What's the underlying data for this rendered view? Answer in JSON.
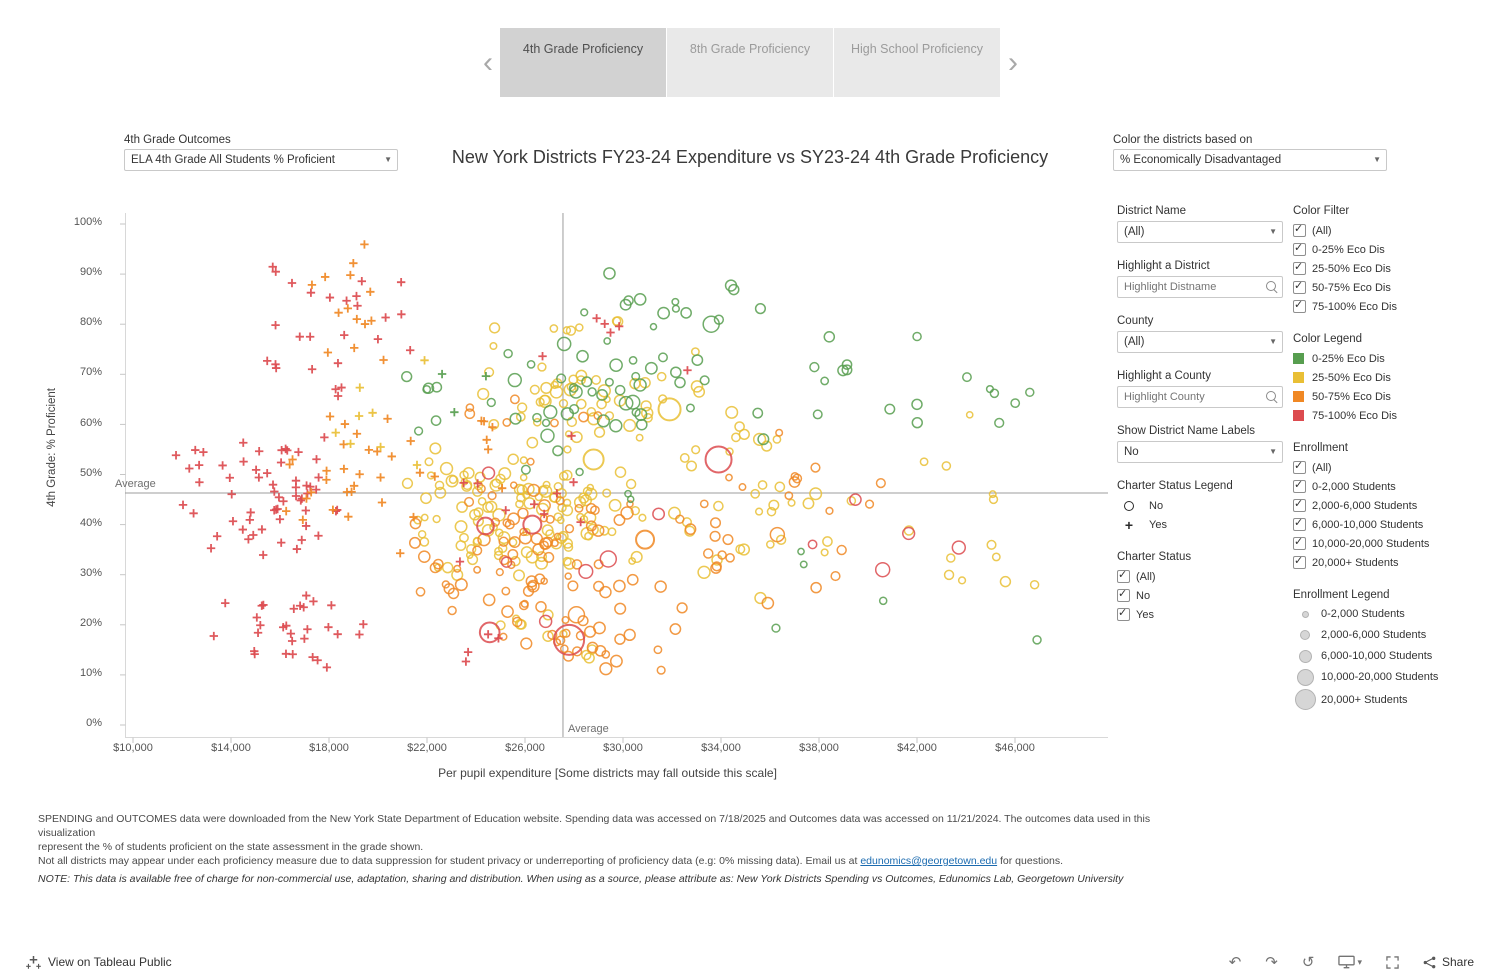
{
  "tabs": {
    "prev": "‹",
    "next": "›",
    "items": [
      {
        "label": "4th Grade Proficiency",
        "active": true
      },
      {
        "label": "8th Grade Proficiency",
        "active": false
      },
      {
        "label": "High School Proficiency",
        "active": false
      }
    ]
  },
  "params": {
    "outcome": {
      "label": "4th Grade Outcomes",
      "value": "ELA 4th Grade All Students % Proficient"
    },
    "color_by": {
      "label": "Color the districts based on",
      "value": "% Economically Disadvantaged"
    }
  },
  "chart_data": {
    "type": "scatter",
    "title": "New York Districts FY23-24 Expenditure vs SY23-24 4th Grade Proficiency",
    "xlabel": "Per pupil expenditure [Some districts may fall outside this scale]",
    "ylabel": "4th Grade: % Proficient",
    "x_tick_values": [
      10000,
      14000,
      18000,
      22000,
      26000,
      30000,
      34000,
      38000,
      42000,
      46000
    ],
    "x_tick_labels": [
      "$10,000",
      "$14,000",
      "$18,000",
      "$22,000",
      "$26,000",
      "$30,000",
      "$34,000",
      "$38,000",
      "$42,000",
      "$46,000"
    ],
    "y_tick_values": [
      0,
      10,
      20,
      30,
      40,
      50,
      60,
      70,
      80,
      90,
      100
    ],
    "y_tick_labels": [
      "0%",
      "10%",
      "20%",
      "30%",
      "40%",
      "50%",
      "60%",
      "70%",
      "80%",
      "90%",
      "100%"
    ],
    "x_range": [
      8900,
      49800
    ],
    "y_range": [
      0,
      104
    ],
    "grid": false,
    "average_x": 27550,
    "average_y": 46.3,
    "average_label": "Average",
    "mark_legend": [
      {
        "mark": "circle",
        "label": "No"
      },
      {
        "mark": "plus",
        "label": "Yes"
      }
    ],
    "colors": {
      "0-25% Eco Dis": "#579e4f",
      "25-50% Eco Dis": "#e9bf35",
      "50-75% Eco Dis": "#f08824",
      "75-100% Eco Dis": "#dc4b4f"
    },
    "clusters": [
      {
        "mark": "circle",
        "color": "#e9bf35",
        "n": 120,
        "x": [
          20500,
          31500
        ],
        "y": [
          27,
          58
        ],
        "r": [
          3,
          6
        ]
      },
      {
        "mark": "circle",
        "color": "#e9bf35",
        "n": 45,
        "x": [
          22000,
          33500
        ],
        "y": [
          55,
          75
        ],
        "r": [
          3,
          6
        ]
      },
      {
        "mark": "circle",
        "color": "#e9bf35",
        "n": 35,
        "x": [
          30000,
          40500
        ],
        "y": [
          25,
          65
        ],
        "r": [
          3,
          6
        ]
      },
      {
        "mark": "circle",
        "color": "#e9bf35",
        "n": 12,
        "x": [
          40000,
          47500
        ],
        "y": [
          25,
          66
        ],
        "r": [
          3,
          5
        ]
      },
      {
        "mark": "circle",
        "color": "#e9bf35",
        "n": 10,
        "x": [
          23500,
          29500
        ],
        "y": [
          10,
          25
        ],
        "r": [
          3,
          5
        ]
      },
      {
        "mark": "circle",
        "color": "#e9bf35",
        "n": 8,
        "x": [
          23800,
          30500
        ],
        "y": [
          73,
          85
        ],
        "r": [
          3,
          5
        ]
      },
      {
        "mark": "circle",
        "color": "#f08824",
        "n": 75,
        "x": [
          21000,
          31500
        ],
        "y": [
          20,
          50
        ],
        "r": [
          3,
          6
        ]
      },
      {
        "mark": "circle",
        "color": "#f08824",
        "n": 25,
        "x": [
          24000,
          33000
        ],
        "y": [
          10,
          22
        ],
        "r": [
          3,
          6
        ]
      },
      {
        "mark": "circle",
        "color": "#f08824",
        "n": 18,
        "x": [
          31000,
          38500
        ],
        "y": [
          20,
          55
        ],
        "r": [
          3,
          6
        ]
      },
      {
        "mark": "circle",
        "color": "#f08824",
        "n": 10,
        "x": [
          33000,
          43500
        ],
        "y": [
          25,
          62
        ],
        "r": [
          3,
          5
        ]
      },
      {
        "mark": "circle",
        "color": "#f08824",
        "n": 8,
        "x": [
          22000,
          30000
        ],
        "y": [
          50,
          67
        ],
        "r": [
          3,
          5
        ]
      },
      {
        "mark": "circle",
        "color": "#579e4f",
        "n": 40,
        "x": [
          23500,
          34000
        ],
        "y": [
          55,
          80
        ],
        "r": [
          3,
          7
        ]
      },
      {
        "mark": "circle",
        "color": "#579e4f",
        "n": 14,
        "x": [
          26000,
          36500
        ],
        "y": [
          78,
          91
        ],
        "r": [
          3,
          6
        ]
      },
      {
        "mark": "circle",
        "color": "#579e4f",
        "n": 12,
        "x": [
          34000,
          42500
        ],
        "y": [
          55,
          83
        ],
        "r": [
          3,
          6
        ]
      },
      {
        "mark": "circle",
        "color": "#579e4f",
        "n": 6,
        "x": [
          42500,
          47200
        ],
        "y": [
          55,
          80
        ],
        "r": [
          3,
          5
        ]
      },
      {
        "mark": "circle",
        "color": "#579e4f",
        "n": 6,
        "x": [
          20500,
          23500
        ],
        "y": [
          58,
          74
        ],
        "r": [
          3,
          5
        ]
      },
      {
        "mark": "circle",
        "color": "#579e4f",
        "n": 4,
        "x": [
          30000,
          42500
        ],
        "y": [
          14,
          40
        ],
        "r": [
          3,
          4
        ]
      },
      {
        "mark": "circle",
        "color": "#579e4f",
        "n": 5,
        "x": [
          25000,
          31000
        ],
        "y": [
          40,
          55
        ],
        "r": [
          3,
          5
        ]
      },
      {
        "mark": "circle",
        "color": "#dc4b4f",
        "n": 8,
        "x": [
          24000,
          34000
        ],
        "y": [
          12,
          55
        ],
        "r": [
          5,
          10
        ]
      },
      {
        "mark": "circle",
        "color": "#dc4b4f",
        "n": 4,
        "x": [
          35000,
          45500
        ],
        "y": [
          28,
          58
        ],
        "r": [
          4,
          8
        ]
      },
      {
        "mark": "plus",
        "color": "#dc4b4f",
        "n": 60,
        "x": [
          11500,
          19500
        ],
        "y": [
          28,
          62
        ]
      },
      {
        "mark": "plus",
        "color": "#dc4b4f",
        "n": 30,
        "x": [
          12000,
          21000
        ],
        "y": [
          9,
          28
        ]
      },
      {
        "mark": "plus",
        "color": "#dc4b4f",
        "n": 26,
        "x": [
          14500,
          21500
        ],
        "y": [
          62,
          98
        ]
      },
      {
        "mark": "plus",
        "color": "#dc4b4f",
        "n": 10,
        "x": [
          21500,
          30000
        ],
        "y": [
          30,
          60
        ]
      },
      {
        "mark": "plus",
        "color": "#dc4b4f",
        "n": 6,
        "x": [
          23000,
          34500
        ],
        "y": [
          62,
          92
        ]
      },
      {
        "mark": "plus",
        "color": "#dc4b4f",
        "n": 4,
        "x": [
          21000,
          27000
        ],
        "y": [
          10,
          25
        ]
      },
      {
        "mark": "plus",
        "color": "#f08824",
        "n": 30,
        "x": [
          15000,
          22500
        ],
        "y": [
          30,
          68
        ]
      },
      {
        "mark": "plus",
        "color": "#f08824",
        "n": 14,
        "x": [
          15500,
          21500
        ],
        "y": [
          68,
          97
        ]
      },
      {
        "mark": "plus",
        "color": "#f08824",
        "n": 6,
        "x": [
          22000,
          26500
        ],
        "y": [
          45,
          75
        ]
      },
      {
        "mark": "plus",
        "color": "#e9bf35",
        "n": 8,
        "x": [
          16500,
          24000
        ],
        "y": [
          45,
          78
        ]
      },
      {
        "mark": "plus",
        "color": "#579e4f",
        "n": 3,
        "x": [
          21500,
          26000
        ],
        "y": [
          58,
          74
        ]
      }
    ],
    "points": [
      {
        "mark": "circle",
        "color": "#dc4b4f",
        "x": 27800,
        "y": 17,
        "r": 15
      },
      {
        "mark": "circle",
        "color": "#dc4b4f",
        "x": 33900,
        "y": 53,
        "r": 13
      },
      {
        "mark": "circle",
        "color": "#dc4b4f",
        "x": 26300,
        "y": 40,
        "r": 9
      },
      {
        "mark": "circle",
        "color": "#dc4b4f",
        "x": 40600,
        "y": 31,
        "r": 7
      },
      {
        "mark": "circle",
        "color": "#e9bf35",
        "x": 31900,
        "y": 63,
        "r": 11
      },
      {
        "mark": "circle",
        "color": "#e9bf35",
        "x": 28800,
        "y": 53,
        "r": 10
      },
      {
        "mark": "circle",
        "color": "#f08824",
        "x": 30900,
        "y": 37,
        "r": 9
      },
      {
        "mark": "circle",
        "color": "#f08824",
        "x": 28100,
        "y": 22,
        "r": 8
      },
      {
        "mark": "circle",
        "color": "#f08824",
        "x": 36300,
        "y": 38,
        "r": 7
      },
      {
        "mark": "circle",
        "color": "#579e4f",
        "x": 33600,
        "y": 80,
        "r": 8
      },
      {
        "mark": "circle",
        "color": "#579e4f",
        "x": 46900,
        "y": 17,
        "r": 4
      },
      {
        "mark": "circle",
        "color": "#e9bf35",
        "x": 46800,
        "y": 28,
        "r": 4
      },
      {
        "mark": "circle",
        "color": "#579e4f",
        "x": 42000,
        "y": 64,
        "r": 5
      }
    ]
  },
  "sidebar": {
    "district_name": {
      "label": "District Name",
      "value": "(All)"
    },
    "highlight_district": {
      "label": "Highlight a District",
      "placeholder": "Highlight Distname"
    },
    "county": {
      "label": "County",
      "value": "(All)"
    },
    "highlight_county": {
      "label": "Highlight a County",
      "placeholder": "Highlight County"
    },
    "show_labels": {
      "label": "Show District Name Labels",
      "value": "No"
    },
    "charter_legend": {
      "label": "Charter Status Legend",
      "no_label": "No",
      "yes_label": "Yes"
    },
    "charter_status": {
      "label": "Charter Status",
      "options": [
        "(All)",
        "No",
        "Yes"
      ]
    },
    "color_filter": {
      "label": "Color Filter",
      "options": [
        "(All)",
        "0-25% Eco Dis",
        "25-50% Eco Dis",
        "50-75% Eco Dis",
        "75-100% Eco Dis"
      ]
    },
    "color_legend": {
      "label": "Color Legend",
      "items": [
        {
          "label": "0-25% Eco Dis",
          "color": "#579e4f"
        },
        {
          "label": "25-50% Eco Dis",
          "color": "#e9bf35"
        },
        {
          "label": "50-75% Eco Dis",
          "color": "#f08824"
        },
        {
          "label": "75-100% Eco Dis",
          "color": "#dc4b4f"
        }
      ]
    },
    "enrollment_filter": {
      "label": "Enrollment",
      "options": [
        "(All)",
        "0-2,000 Students",
        "2,000-6,000 Students",
        "6,000-10,000 Students",
        "10,000-20,000 Students",
        "20,000+ Students"
      ]
    },
    "enrollment_legend": {
      "label": "Enrollment Legend",
      "items": [
        {
          "label": "0-2,000 Students",
          "d": 7
        },
        {
          "label": "2,000-6,000 Students",
          "d": 10
        },
        {
          "label": "6,000-10,000 Students",
          "d": 13
        },
        {
          "label": "10,000-20,000 Students",
          "d": 17
        },
        {
          "label": "20,000+ Students",
          "d": 21
        }
      ]
    }
  },
  "footnotes": {
    "line1": "SPENDING and OUTCOMES data were downloaded from the New York State Department of Education website. Spending data was accessed on 7/18/2025 and Outcomes data was accessed on 11/21/2024. The outcomes data used in this visualization",
    "line2": "represent the % of students proficient on the state assessment in the grade shown.",
    "line3_pre": "Not all districts may appear under each proficiency measure due to data suppression for student privacy or underreporting of proficiency data (e.g: 0% missing data). Email us at ",
    "email_link": "edunomics@georgetown.edu",
    "line3_post": " for questions.",
    "note": "NOTE: This data is available free of charge for non-commercial use, adaptation, sharing and distribution. When using as a source, please attribute as: New York Districts Spending vs Outcomes, Edunomics Lab, Georgetown University"
  },
  "toolbar": {
    "view_label": "View on Tableau Public",
    "share_label": "Share",
    "icons": {
      "undo": "↶",
      "redo": "↷",
      "reset": "↺",
      "caret": "▾",
      "dropdown_caret": "▼"
    }
  }
}
